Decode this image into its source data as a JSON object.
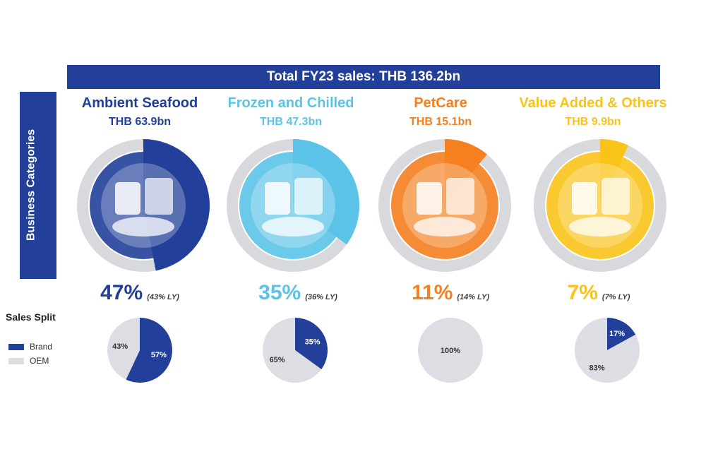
{
  "header": {
    "title": "Total FY23 sales: THB 136.2bn"
  },
  "sidebar": {
    "label": "Business Categories"
  },
  "legend": {
    "title": "Sales Split",
    "items": [
      {
        "label": "Brand",
        "color": "#22409a"
      },
      {
        "label": "OEM",
        "color": "#dcdee3"
      }
    ]
  },
  "colors": {
    "ambient": "#22409a",
    "frozen": "#5bc3e8",
    "petcare": "#f4801f",
    "value": "#f9c318",
    "ring_track": "#d7d9dd",
    "brand": "#22409a",
    "oem": "#dcdee3"
  },
  "categories": [
    {
      "name": "Ambient Seafood",
      "sales": "THB 63.9bn",
      "share": "47%",
      "ly": "(43% LY)",
      "color": "#22409a",
      "image": "ambient-seafood-products-image"
    },
    {
      "name": "Frozen and Chilled",
      "sales": "THB 47.3bn",
      "share": "35%",
      "ly": "(36% LY)",
      "color": "#5bc3e8",
      "image": "frozen-chilled-products-image"
    },
    {
      "name": "PetCare",
      "sales": "THB 15.1bn",
      "share": "11%",
      "ly": "(14% LY)",
      "color": "#f4801f",
      "image": "cat-petcare-products-image"
    },
    {
      "name": "Value Added & Others",
      "sales": "THB 9.9bn",
      "share": "7%",
      "ly": "(7% LY)",
      "color": "#f9c318",
      "image": "value-added-products-image"
    }
  ],
  "chart_data": [
    {
      "type": "donut",
      "title": "Total FY23 sales: THB 136.2bn",
      "categories": [
        "Ambient Seafood",
        "Frozen and Chilled",
        "PetCare",
        "Value Added & Others"
      ],
      "values": [
        47,
        35,
        11,
        7
      ],
      "last_year": [
        43,
        36,
        14,
        7
      ],
      "unit": "%"
    },
    {
      "type": "pie",
      "title": "Sales Split",
      "categories": [
        "Ambient Seafood",
        "Frozen and Chilled",
        "PetCare",
        "Value Added & Others"
      ],
      "series": [
        {
          "name": "Brand",
          "values": [
            57,
            35,
            0,
            17
          ]
        },
        {
          "name": "OEM",
          "values": [
            43,
            65,
            100,
            83
          ]
        }
      ],
      "labels": [
        {
          "brand": "57%",
          "oem": "43%"
        },
        {
          "brand": "35%",
          "oem": "65%"
        },
        {
          "brand": "",
          "oem": "100%"
        },
        {
          "brand": "17%",
          "oem": "83%"
        }
      ],
      "unit": "%"
    }
  ]
}
